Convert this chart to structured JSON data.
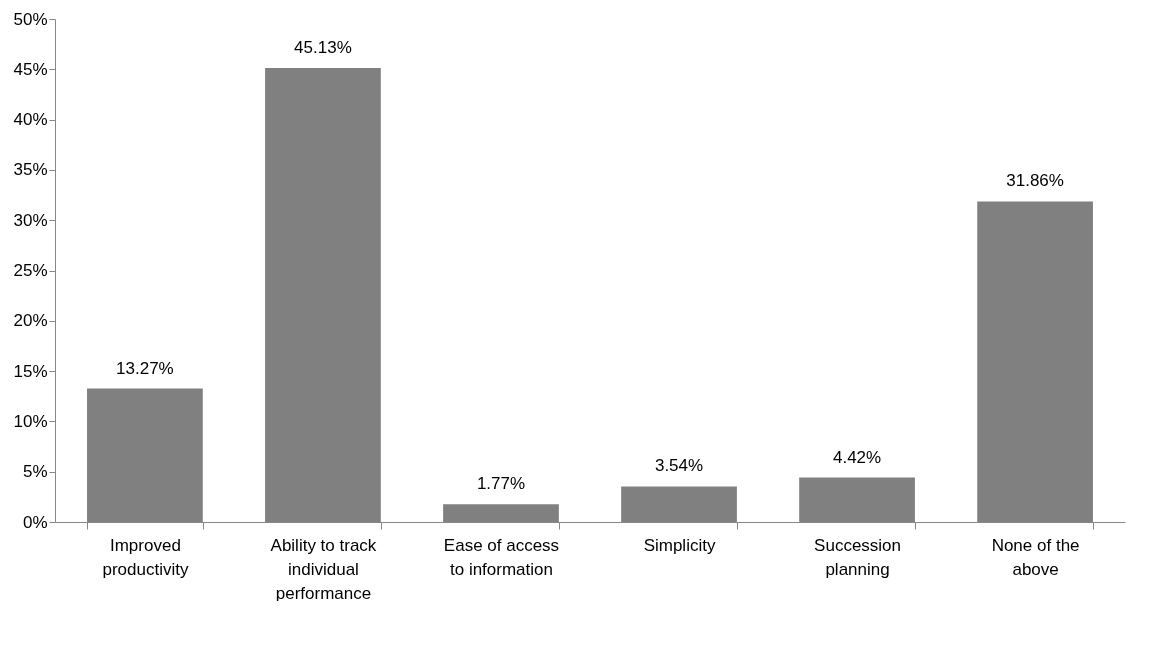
{
  "chart_data": {
    "type": "bar",
    "categories": [
      "Improved productivity",
      "Ability to track individual performance",
      "Ease of access to information",
      "Simplicity",
      "Succession planning",
      "None of the above"
    ],
    "values": [
      13.27,
      45.13,
      1.77,
      3.54,
      4.42,
      31.86
    ],
    "value_labels": [
      "13.27%",
      "45.13%",
      "1.77%",
      "3.54%",
      "4.42%",
      "31.86%"
    ],
    "color": "#808080",
    "ylim": [
      0,
      50
    ],
    "yticks": [
      {
        "value": 0,
        "label": "0%"
      },
      {
        "value": 5,
        "label": "5%"
      },
      {
        "value": 10,
        "label": "10%"
      },
      {
        "value": 15,
        "label": "15%"
      },
      {
        "value": 20,
        "label": "20%"
      },
      {
        "value": 25,
        "label": "25%"
      },
      {
        "value": 30,
        "label": "30%"
      },
      {
        "value": 35,
        "label": "35%"
      },
      {
        "value": 40,
        "label": "40%"
      },
      {
        "value": 45,
        "label": "45%"
      },
      {
        "value": 50,
        "label": "50%"
      }
    ],
    "grid": false
  }
}
